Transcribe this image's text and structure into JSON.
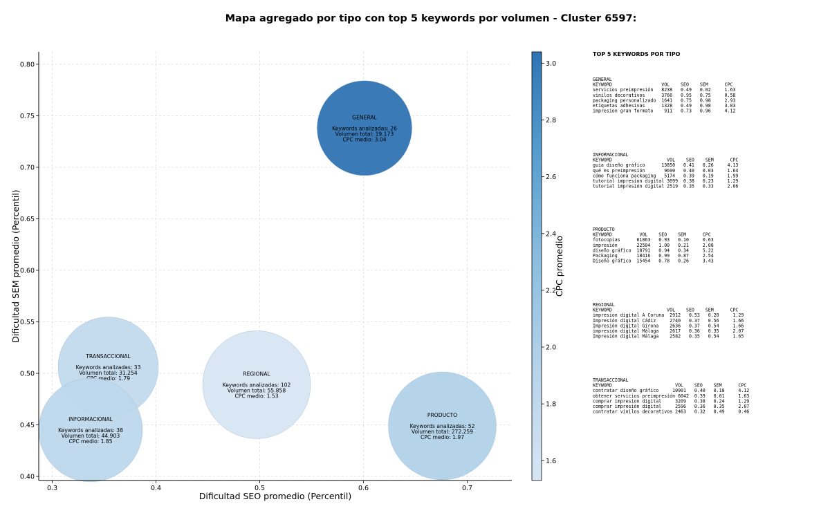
{
  "chart_data": {
    "type": "scatter",
    "title": "Mapa agregado por tipo con top 5 keywords por volumen - Cluster 6597:",
    "xlabel": "Dificultad SEO promedio (Percentil)",
    "ylabel": "Dificultad SEM promedio (Percentil)",
    "colorbar_label": "CPC promedio",
    "xlim": [
      0.287,
      0.743
    ],
    "ylim": [
      0.396,
      0.812
    ],
    "xticks": [
      0.3,
      0.4,
      0.5,
      0.6,
      0.7
    ],
    "yticks": [
      0.4,
      0.45,
      0.5,
      0.55,
      0.6,
      0.65,
      0.7,
      0.75,
      0.8
    ],
    "colorbar_range": [
      1.53,
      3.04
    ],
    "colorbar_ticks": [
      1.6,
      1.8,
      2.0,
      2.2,
      2.4,
      2.6,
      2.8,
      3.0
    ],
    "grid": true,
    "points": [
      {
        "label": "GENERAL",
        "x": 0.601,
        "y": 0.738,
        "keywords": 26,
        "volume": 19173,
        "cpc": 3.04,
        "line1": "Keywords analizadas: 26",
        "line2": "Volumen total: 19.173",
        "line3": "CPC medio: 3.04"
      },
      {
        "label": "TRANSACCIONAL",
        "x": 0.354,
        "y": 0.506,
        "keywords": 33,
        "volume": 31254,
        "cpc": 1.79,
        "line1": "Keywords analizadas: 33",
        "line2": "Volumen total: 31.254",
        "line3": "CPC medio: 1.79"
      },
      {
        "label": "REGIONAL",
        "x": 0.497,
        "y": 0.489,
        "keywords": 102,
        "volume": 55858,
        "cpc": 1.53,
        "line1": "Keywords analizadas: 102",
        "line2": "Volumen total: 55.858",
        "line3": "CPC medio: 1.53"
      },
      {
        "label": "INFORMACIONAL",
        "x": 0.337,
        "y": 0.445,
        "keywords": 38,
        "volume": 44903,
        "cpc": 1.85,
        "line1": "Keywords analizadas: 38",
        "line2": "Volumen total: 44.903",
        "line3": "CPC medio: 1.85"
      },
      {
        "label": "PRODUCTO",
        "x": 0.676,
        "y": 0.449,
        "keywords": 52,
        "volume": 272259,
        "cpc": 1.97,
        "line1": "Keywords analizadas: 52",
        "line2": "Volumen total: 272.259",
        "line3": "CPC medio: 1.97"
      }
    ],
    "side_panel": {
      "title": "TOP 5 KEYWORDS POR TIPO",
      "blocks": [
        {
          "type": "GENERAL",
          "lines": [
            "KEYWORD                  VOL    SEO    SEM      CPC",
            "servicios preimpresión   8238   0.49   0.02     1.63",
            "vinilos decorativos      3766   0.95   0.75     0.58",
            "packaging personalizado  1641   0.75   0.98     2.93",
            "etiquetas adhesivas      1328   0.49   0.98     3.83",
            "impresion gran formato    911   0.73   0.96     4.12"
          ]
        },
        {
          "type": "INFORMACIONAL",
          "lines": [
            "KEYWORD                    VOL    SEO    SEM      CPC",
            "guia diseño gráfico      13850   0.41   0.26     4.13",
            "qué es preimpresión       9690   0.40   0.03     1.64",
            "cómo funciona packaging   5174   0.39   0.19     1.99",
            "tutorial impresion digital 3099  0.38   0.23     1.29",
            "tutorial impresión digital 2519  0.35   0.33     2.06"
          ]
        },
        {
          "type": "PRODUCTO",
          "lines": [
            "KEYWORD          VOL    SEO    SEM      CPC",
            "fotocopias      61863   0.93   0.10     0.63",
            "impresión       22504   1.00   0.21     2.08",
            "diseño gráfico  18791   0.94   0.34     5.22",
            "Packaging       18416   0.99   0.87     2.54",
            "Diseño gráfico  15454   0.78   0.26     3.43"
          ]
        },
        {
          "type": "REGIONAL",
          "lines": [
            "KEYWORD                    VOL    SEO    SEM      CPC",
            "impresion digital A Coruna  2912   0.53   0.20     1.29",
            "Impresión digital Cádiz     2740   0.37   0.56     1.66",
            "Impresión digital Girona    2636   0.37   0.54     1.66",
            "impresión digital Málaga    2617   0.36   0.35     2.07",
            "Impresión digital Málaga    2582   0.35   0.54     1.65"
          ]
        },
        {
          "type": "TRANSACCIONAL",
          "lines": [
            "KEYWORD                       VOL    SEO    SEM      CPC",
            "contratar diseño gráfico     10901   0.40   0.18     4.12",
            "obtener servicios preimpresión 6042  0.39   0.01     1.63",
            "comprar impresion digital     3209   0.38   0.24     1.29",
            "comprar impresión digital     2596   0.36   0.35     2.07",
            "contratar vinilos decorativos 2463   0.32   0.49     0.46"
          ]
        }
      ]
    }
  }
}
